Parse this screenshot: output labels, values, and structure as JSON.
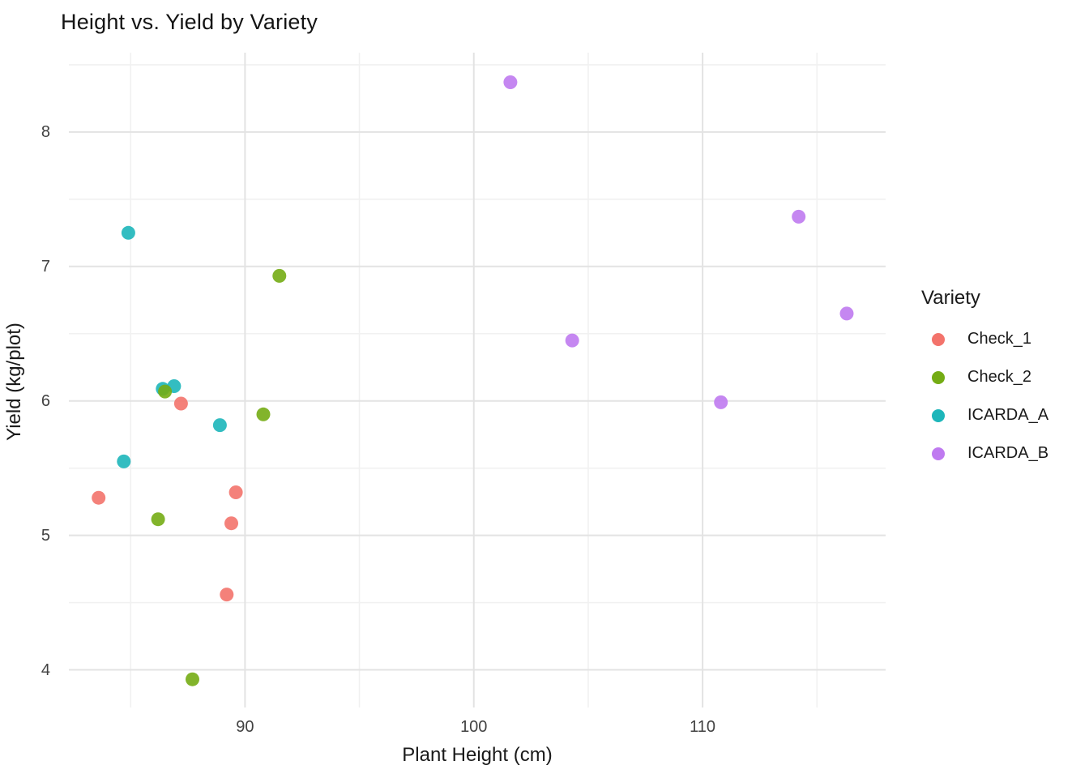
{
  "title": "Height vs. Yield by Variety",
  "axes": {
    "x": {
      "label": "Plant Height (cm)",
      "ticks": [
        90,
        100,
        110
      ],
      "minor_ticks": [
        85,
        95,
        105,
        115
      ]
    },
    "y": {
      "label": "Yield (kg/plot)",
      "ticks": [
        4,
        5,
        6,
        7,
        8
      ],
      "minor_ticks": [
        4.5,
        5.5,
        6.5,
        7.5,
        8.5
      ]
    }
  },
  "legend": {
    "title": "Variety",
    "position": "right",
    "items": [
      {
        "label": "Check_1",
        "color": "#F3736B"
      },
      {
        "label": "Check_2",
        "color": "#74AC14"
      },
      {
        "label": "ICARDA_A",
        "color": "#1DB6BA"
      },
      {
        "label": "ICARDA_B",
        "color": "#BF7AF0"
      }
    ]
  },
  "style": {
    "major_grid_color": "#E3E3E3",
    "minor_grid_color": "#F1F1F1",
    "point_radius": 8.5,
    "point_opacity": 0.9
  },
  "chart_data": {
    "type": "scatter",
    "title": "Height vs. Yield by Variety",
    "xlabel": "Plant Height (cm)",
    "ylabel": "Yield (kg/plot)",
    "xlim": [
      82.3,
      118.0
    ],
    "ylim": [
      3.72,
      8.59
    ],
    "grid": true,
    "legend_position": "right",
    "series": [
      {
        "name": "ICARDA_A",
        "color": "#1DB6BA",
        "points": [
          [
            84.9,
            7.25
          ],
          [
            86.9,
            6.11
          ],
          [
            86.4,
            6.09
          ],
          [
            88.9,
            5.82
          ],
          [
            84.7,
            5.55
          ]
        ]
      },
      {
        "name": "Check_1",
        "color": "#F3736B",
        "points": [
          [
            83.6,
            5.28
          ],
          [
            87.2,
            5.98
          ],
          [
            89.6,
            5.32
          ],
          [
            89.4,
            5.09
          ],
          [
            89.2,
            4.56
          ]
        ]
      },
      {
        "name": "Check_2",
        "color": "#74AC14",
        "points": [
          [
            91.5,
            6.93
          ],
          [
            86.5,
            6.07
          ],
          [
            90.8,
            5.9
          ],
          [
            86.2,
            5.12
          ],
          [
            87.7,
            3.93
          ]
        ]
      },
      {
        "name": "ICARDA_B",
        "color": "#BF7AF0",
        "points": [
          [
            101.6,
            8.37
          ],
          [
            114.2,
            7.37
          ],
          [
            116.3,
            6.65
          ],
          [
            104.3,
            6.45
          ],
          [
            110.8,
            5.99
          ]
        ]
      }
    ]
  }
}
